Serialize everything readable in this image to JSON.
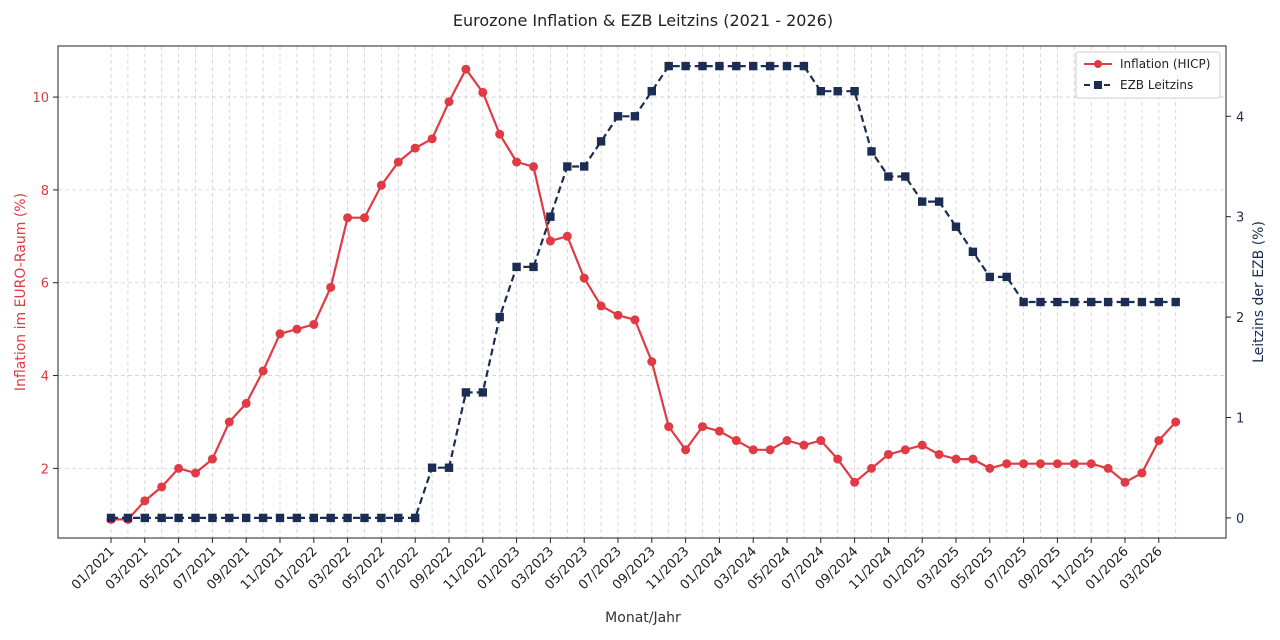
{
  "chart_data": {
    "type": "line",
    "title": "Eurozone Inflation & EZB Leitzins (2021 - 2026)",
    "xlabel": "Monat/Jahr",
    "ylabel_left": "Inflation im EURO-Raum (%)",
    "ylabel_right": "Leitzins der EZB (%)",
    "x_tick_labels": [
      "01/2021",
      "03/2021",
      "05/2021",
      "07/2021",
      "09/2021",
      "11/2021",
      "01/2022",
      "03/2022",
      "05/2022",
      "07/2022",
      "09/2022",
      "11/2022",
      "01/2023",
      "03/2023",
      "05/2023",
      "07/2023",
      "09/2023",
      "11/2023",
      "01/2024",
      "03/2024",
      "05/2024",
      "07/2024",
      "09/2024",
      "11/2024",
      "01/2025",
      "03/2025",
      "05/2025",
      "07/2025",
      "09/2025",
      "11/2025",
      "01/2026",
      "03/2026"
    ],
    "x": [
      "01/2021",
      "02/2021",
      "03/2021",
      "04/2021",
      "05/2021",
      "06/2021",
      "07/2021",
      "08/2021",
      "09/2021",
      "10/2021",
      "11/2021",
      "12/2021",
      "01/2022",
      "02/2022",
      "03/2022",
      "04/2022",
      "05/2022",
      "06/2022",
      "07/2022",
      "08/2022",
      "09/2022",
      "10/2022",
      "11/2022",
      "12/2022",
      "01/2023",
      "02/2023",
      "03/2023",
      "04/2023",
      "05/2023",
      "06/2023",
      "07/2023",
      "08/2023",
      "09/2023",
      "10/2023",
      "11/2023",
      "12/2023",
      "01/2024",
      "02/2024",
      "03/2024",
      "04/2024",
      "05/2024",
      "06/2024",
      "07/2024",
      "08/2024",
      "09/2024",
      "10/2024",
      "11/2024",
      "12/2024",
      "01/2025",
      "02/2025",
      "03/2025",
      "04/2025",
      "05/2025",
      "06/2025",
      "07/2025",
      "08/2025",
      "09/2025",
      "10/2025",
      "11/2025",
      "12/2025",
      "01/2026",
      "02/2026",
      "03/2026",
      "04/2026"
    ],
    "series": [
      {
        "name": "Inflation (HICP)",
        "axis": "left",
        "color": "#e03a45",
        "style": "solid",
        "marker": "circle",
        "values": [
          0.9,
          0.9,
          1.3,
          1.6,
          2.0,
          1.9,
          2.2,
          3.0,
          3.4,
          4.1,
          4.9,
          5.0,
          5.1,
          5.9,
          7.4,
          7.4,
          8.1,
          8.6,
          8.9,
          9.1,
          9.9,
          10.6,
          10.1,
          9.2,
          8.6,
          8.5,
          6.9,
          7.0,
          6.1,
          5.5,
          5.3,
          5.2,
          4.3,
          2.9,
          2.4,
          2.9,
          2.8,
          2.6,
          2.4,
          2.4,
          2.6,
          2.5,
          2.6,
          2.2,
          1.7,
          2.0,
          2.3,
          2.4,
          2.5,
          2.3,
          2.2,
          2.2,
          2.0,
          2.1,
          2.1,
          2.1,
          2.1,
          2.1,
          2.1,
          2.0,
          1.7,
          1.9,
          2.6,
          3.0
        ]
      },
      {
        "name": "EZB Leitzins",
        "axis": "right",
        "color": "#1b2d52",
        "style": "dashed",
        "marker": "square",
        "values": [
          0,
          0,
          0,
          0,
          0,
          0,
          0,
          0,
          0,
          0,
          0,
          0,
          0,
          0,
          0,
          0,
          0,
          0,
          0,
          0.5,
          0.5,
          1.25,
          1.25,
          2.0,
          2.5,
          2.5,
          3.0,
          3.5,
          3.5,
          3.75,
          4.0,
          4.0,
          4.25,
          4.5,
          4.5,
          4.5,
          4.5,
          4.5,
          4.5,
          4.5,
          4.5,
          4.5,
          4.25,
          4.25,
          4.25,
          3.65,
          3.4,
          3.4,
          3.15,
          3.15,
          2.9,
          2.65,
          2.4,
          2.4,
          2.15,
          2.15,
          2.15,
          2.15,
          2.15,
          2.15,
          2.15,
          2.15,
          2.15,
          2.15
        ]
      }
    ],
    "ylim_left": [
      0.5,
      11.1
    ],
    "ylim_right": [
      -0.2,
      4.7
    ],
    "yticks_left": [
      2,
      4,
      6,
      8,
      10
    ],
    "yticks_right": [
      0,
      1,
      2,
      3,
      4
    ],
    "grid": true,
    "legend_position": "top-right",
    "colors": {
      "left_axis": "#e03a45",
      "right_axis": "#1b2d52",
      "grid": "#d0d0d0"
    }
  }
}
